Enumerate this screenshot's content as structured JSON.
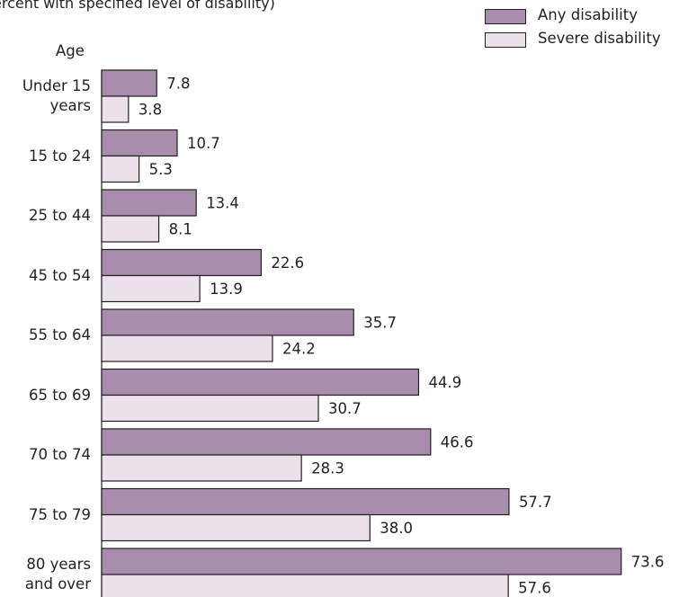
{
  "subtitle": "ercent with specified level of disability)",
  "colors": {
    "any": "#a98dac",
    "severe": "#eae1ea",
    "stroke": "#231f20"
  },
  "legend": [
    {
      "key": "any",
      "label": "Any disability"
    },
    {
      "key": "severe",
      "label": "Severe disability"
    }
  ],
  "chart_data": {
    "type": "bar",
    "orientation": "horizontal",
    "title": "",
    "ylabel": "Age",
    "xlabel": "",
    "xlim": [
      0,
      80
    ],
    "grid": false,
    "legend_position": "top-right",
    "categories": [
      "Under 15\nyears",
      "15 to 24",
      "25 to 44",
      "45 to 54",
      "55 to 64",
      "65 to 69",
      "70 to 74",
      "75 to 79",
      "80 years\nand over"
    ],
    "series": [
      {
        "name": "Any disability",
        "values": [
          7.8,
          10.7,
          13.4,
          22.6,
          35.7,
          44.9,
          46.6,
          57.7,
          73.6
        ],
        "labels": [
          "7.8",
          "10.7",
          "13.4",
          "22.6",
          "35.7",
          "44.9",
          "46.6",
          "57.7",
          "73.6"
        ]
      },
      {
        "name": "Severe disability",
        "values": [
          3.8,
          5.3,
          8.1,
          13.9,
          24.2,
          30.7,
          28.3,
          38.0,
          57.6
        ],
        "labels": [
          "3.8",
          "5.3",
          "8.1",
          "13.9",
          "24.2",
          "30.7",
          "28.3",
          "38.0",
          "57.6"
        ]
      }
    ]
  }
}
